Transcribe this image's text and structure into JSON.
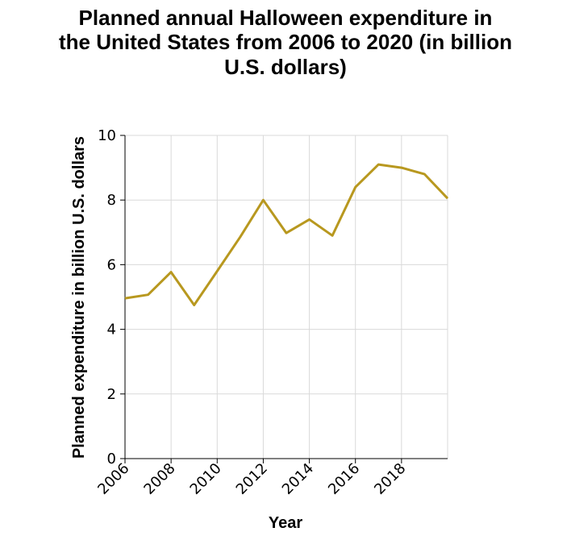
{
  "chart_data": {
    "type": "line",
    "title_lines": [
      "Planned annual Halloween expenditure in",
      "the United States from 2006 to 2020 (in billion",
      "U.S. dollars)"
    ],
    "xlabel": "Year",
    "ylabel": "Planned expenditure in billion U.S. dollars",
    "xlim": [
      2006,
      2020
    ],
    "ylim": [
      0,
      10
    ],
    "x_ticks": [
      2006,
      2008,
      2010,
      2012,
      2014,
      2016,
      2018
    ],
    "y_ticks": [
      0,
      2,
      4,
      6,
      8,
      10
    ],
    "grid": true,
    "line_color": "#b8981f",
    "x": [
      2006,
      2007,
      2008,
      2009,
      2010,
      2011,
      2012,
      2013,
      2014,
      2015,
      2016,
      2017,
      2018,
      2019,
      2020
    ],
    "values": [
      4.96,
      5.07,
      5.77,
      4.75,
      5.8,
      6.86,
      8.0,
      6.98,
      7.4,
      6.9,
      8.4,
      9.1,
      9.0,
      8.8,
      8.05
    ]
  }
}
